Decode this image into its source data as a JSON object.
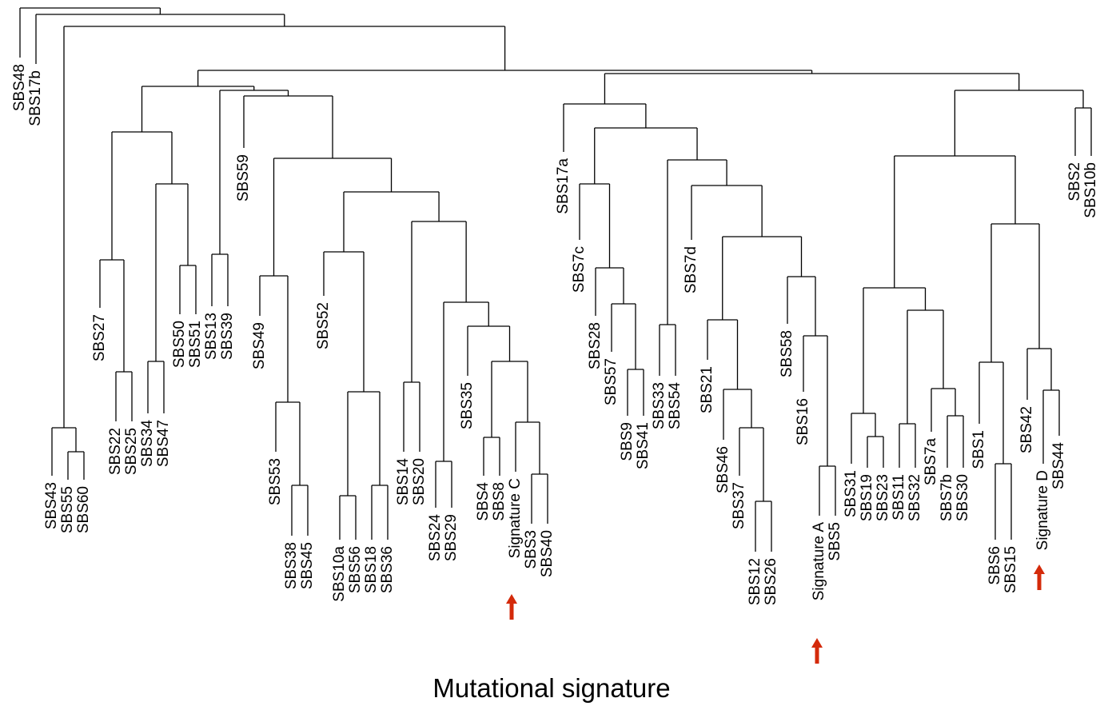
{
  "leaves": [
    "SBS48",
    "SBS17b",
    "SBS43",
    "SBS55",
    "SBS60",
    "SBS27",
    "SBS22",
    "SBS25",
    "SBS34",
    "SBS47",
    "SBS50",
    "SBS51",
    "SBS13",
    "SBS39",
    "SBS59",
    "SBS49",
    "SBS53",
    "SBS38",
    "SBS45",
    "SBS52",
    "SBS10a",
    "SBS56",
    "SBS18",
    "SBS36",
    "SBS14",
    "SBS20",
    "SBS24",
    "SBS29",
    "SBS35",
    "SBS4",
    "SBS8",
    "Signature C",
    "SBS3",
    "SBS40",
    "SBS17a",
    "SBS7c",
    "SBS28",
    "SBS57",
    "SBS9",
    "SBS41",
    "SBS33",
    "SBS54",
    "SBS7d",
    "SBS21",
    "SBS46",
    "SBS37",
    "SBS12",
    "SBS26",
    "SBS58",
    "SBS16",
    "Signature A",
    "SBS5",
    "SBS31",
    "SBS19",
    "SBS23",
    "SBS11",
    "SBS32",
    "SBS7a",
    "SBS7b",
    "SBS30",
    "SBS1",
    "SBS6",
    "SBS15",
    "SBS42",
    "Signature D",
    "SBS44",
    "SBS2",
    "SBS10b"
  ],
  "axis_title": "Mutational signature"
}
